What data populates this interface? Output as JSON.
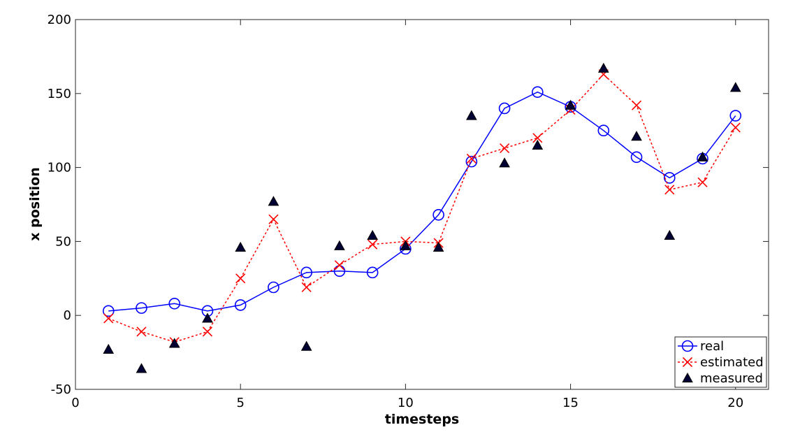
{
  "chart_data": {
    "type": "line",
    "title": "",
    "xlabel": "timesteps",
    "ylabel": "x position",
    "xlim": [
      0,
      21
    ],
    "ylim": [
      -50,
      200
    ],
    "xticks": [
      0,
      5,
      10,
      15,
      20
    ],
    "yticks": [
      -50,
      0,
      50,
      100,
      150,
      200
    ],
    "grid": false,
    "legend_position": "bottom-right",
    "series": [
      {
        "name": "real",
        "style": "solid-line-circle",
        "color": "#0000ff",
        "x": [
          1,
          2,
          3,
          4,
          5,
          6,
          7,
          8,
          9,
          10,
          11,
          12,
          13,
          14,
          15,
          16,
          17,
          18,
          19,
          20
        ],
        "values": [
          3,
          5,
          8,
          3,
          7,
          19,
          29,
          30,
          29,
          45,
          68,
          104,
          140,
          151,
          141,
          125,
          107,
          93,
          106,
          135
        ]
      },
      {
        "name": "estimated",
        "style": "dotted-line-x",
        "color": "#ff0000",
        "x": [
          1,
          2,
          3,
          4,
          5,
          6,
          7,
          8,
          9,
          10,
          11,
          12,
          13,
          14,
          15,
          16,
          17,
          18,
          19,
          20
        ],
        "values": [
          -2,
          -11,
          -18,
          -11,
          25,
          65,
          19,
          34,
          48,
          50,
          49,
          106,
          113,
          120,
          139,
          163,
          142,
          85,
          90,
          127
        ]
      },
      {
        "name": "measured",
        "style": "triangle-markers",
        "color": "#000033",
        "x": [
          1,
          2,
          3,
          4,
          5,
          6,
          7,
          8,
          9,
          10,
          11,
          12,
          13,
          14,
          15,
          16,
          17,
          18,
          19,
          20
        ],
        "values": [
          -23,
          -36,
          -19,
          -2,
          46,
          77,
          -21,
          47,
          54,
          47,
          46,
          135,
          103,
          115,
          142,
          167,
          121,
          54,
          107,
          154
        ]
      }
    ]
  }
}
